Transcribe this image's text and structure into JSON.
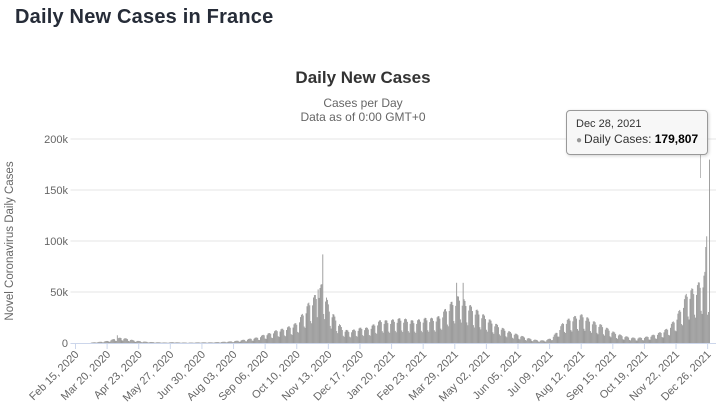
{
  "page": {
    "title": "Daily New Cases in France"
  },
  "chart": {
    "title": "Daily New Cases",
    "subtitle1": "Cases per Day",
    "subtitle2": "Data as of 0:00 GMT+0",
    "yaxis_title": "Novel Coronavirus Daily Cases"
  },
  "tooltip": {
    "date": "Dec 28, 2021",
    "series_label": "Daily Cases:",
    "value": "179,807",
    "marker": "●",
    "marker_color": "#999999"
  },
  "chart_data": {
    "type": "bar",
    "title": "Daily New Cases",
    "subtitle": "Cases per Day — Data as of 0:00 GMT+0",
    "xlabel": "",
    "ylabel": "Novel Coronavirus Daily Cases",
    "ylim": [
      0,
      200000
    ],
    "ytick_values": [
      0,
      50000,
      100000,
      150000,
      200000
    ],
    "ytick_labels": [
      "0",
      "50k",
      "100k",
      "150k",
      "200k"
    ],
    "xtick_labels": [
      "Feb 15, 2020",
      "Mar 20, 2020",
      "Apr 23, 2020",
      "May 27, 2020",
      "Jun 30, 2020",
      "Aug 03, 2020",
      "Sep 06, 2020",
      "Oct 10, 2020",
      "Nov 13, 2020",
      "Dec 17, 2020",
      "Jan 20, 2021",
      "Feb 23, 2021",
      "Mar 29, 2021",
      "May 02, 2021",
      "Jun 05, 2021",
      "Jul 09, 2021",
      "Aug 12, 2021",
      "Sep 15, 2021",
      "Oct 19, 2021",
      "Nov 22, 2021",
      "Dec 26, 2021"
    ],
    "xtick_interval_days": 34,
    "date_range": [
      "2020-02-15",
      "2021-12-28"
    ],
    "grid": "horizontal",
    "legend": "none",
    "bar_color": "#999999",
    "grid_color": "#e6e6e6",
    "axis_line_color": "#ccd6eb",
    "label_color": "#666666",
    "weekly_peak_envelope": [
      [
        "2020-02-15",
        10
      ],
      [
        "2020-02-22",
        40
      ],
      [
        "2020-02-29",
        250
      ],
      [
        "2020-03-07",
        800
      ],
      [
        "2020-03-14",
        1300
      ],
      [
        "2020-03-21",
        2200
      ],
      [
        "2020-03-28",
        4200
      ],
      [
        "2020-04-04",
        5500
      ],
      [
        "2020-04-11",
        4300
      ],
      [
        "2020-04-18",
        2600
      ],
      [
        "2020-04-25",
        1800
      ],
      [
        "2020-05-02",
        1200
      ],
      [
        "2020-05-09",
        900
      ],
      [
        "2020-05-16",
        700
      ],
      [
        "2020-05-23",
        500
      ],
      [
        "2020-05-30",
        900
      ],
      [
        "2020-06-06",
        600
      ],
      [
        "2020-06-13",
        500
      ],
      [
        "2020-06-20",
        500
      ],
      [
        "2020-06-27",
        700
      ],
      [
        "2020-07-04",
        700
      ],
      [
        "2020-07-11",
        700
      ],
      [
        "2020-07-18",
        1000
      ],
      [
        "2020-07-25",
        1300
      ],
      [
        "2020-08-01",
        1700
      ],
      [
        "2020-08-08",
        2400
      ],
      [
        "2020-08-15",
        3400
      ],
      [
        "2020-08-22",
        4600
      ],
      [
        "2020-08-29",
        5700
      ],
      [
        "2020-09-05",
        8600
      ],
      [
        "2020-09-12",
        10200
      ],
      [
        "2020-09-19",
        13200
      ],
      [
        "2020-09-26",
        14400
      ],
      [
        "2020-10-03",
        17000
      ],
      [
        "2020-10-10",
        20300
      ],
      [
        "2020-10-17",
        30600
      ],
      [
        "2020-10-24",
        42000
      ],
      [
        "2020-10-31",
        49000
      ],
      [
        "2020-11-07",
        60500
      ],
      [
        "2020-11-14",
        35000
      ],
      [
        "2020-11-21",
        25000
      ],
      [
        "2020-11-28",
        14500
      ],
      [
        "2020-12-05",
        12200
      ],
      [
        "2020-12-12",
        13600
      ],
      [
        "2020-12-19",
        15600
      ],
      [
        "2020-12-26",
        15100
      ],
      [
        "2021-01-02",
        19300
      ],
      [
        "2021-01-09",
        23300
      ],
      [
        "2021-01-16",
        22200
      ],
      [
        "2021-01-23",
        23600
      ],
      [
        "2021-01-30",
        24800
      ],
      [
        "2021-02-06",
        23600
      ],
      [
        "2021-02-13",
        22100
      ],
      [
        "2021-02-20",
        23700
      ],
      [
        "2021-02-27",
        25200
      ],
      [
        "2021-03-06",
        24600
      ],
      [
        "2021-03-13",
        27100
      ],
      [
        "2021-03-20",
        35200
      ],
      [
        "2021-03-27",
        42300
      ],
      [
        "2021-04-03",
        47200
      ],
      [
        "2021-04-10",
        41200
      ],
      [
        "2021-04-17",
        35600
      ],
      [
        "2021-04-24",
        31700
      ],
      [
        "2021-05-01",
        26700
      ],
      [
        "2021-05-08",
        21600
      ],
      [
        "2021-05-15",
        17600
      ],
      [
        "2021-05-22",
        13600
      ],
      [
        "2021-05-29",
        10600
      ],
      [
        "2021-06-05",
        8600
      ],
      [
        "2021-06-12",
        6100
      ],
      [
        "2021-06-19",
        4100
      ],
      [
        "2021-06-26",
        2900
      ],
      [
        "2021-07-03",
        2600
      ],
      [
        "2021-07-10",
        4600
      ],
      [
        "2021-07-17",
        11200
      ],
      [
        "2021-07-24",
        21300
      ],
      [
        "2021-07-31",
        24900
      ],
      [
        "2021-08-07",
        27200
      ],
      [
        "2021-08-14",
        28600
      ],
      [
        "2021-08-21",
        23800
      ],
      [
        "2021-08-28",
        20300
      ],
      [
        "2021-09-04",
        17700
      ],
      [
        "2021-09-11",
        13700
      ],
      [
        "2021-09-18",
        10100
      ],
      [
        "2021-09-25",
        7600
      ],
      [
        "2021-10-02",
        6100
      ],
      [
        "2021-10-09",
        5100
      ],
      [
        "2021-10-16",
        5600
      ],
      [
        "2021-10-23",
        6600
      ],
      [
        "2021-10-30",
        8600
      ],
      [
        "2021-11-06",
        11200
      ],
      [
        "2021-11-13",
        14700
      ],
      [
        "2021-11-20",
        22800
      ],
      [
        "2021-11-27",
        34800
      ],
      [
        "2021-12-04",
        51500
      ],
      [
        "2021-12-11",
        54500
      ],
      [
        "2021-12-18",
        61500
      ],
      [
        "2021-12-25",
        73000
      ]
    ],
    "exact_daily_values": {
      "2020-03-31": 7578,
      "2020-11-02": 52518,
      "2020-11-07": 86852,
      "2021-03-31": 59038,
      "2021-04-07": 59000,
      "2021-12-24": 94124,
      "2021-12-25": 104611,
      "2021-12-26": 27697,
      "2021-12-27": 30383,
      "2021-12-28": 179807
    },
    "highlighted_point": {
      "date": "Dec 28, 2021",
      "series": "Daily Cases",
      "value": 179807
    }
  }
}
